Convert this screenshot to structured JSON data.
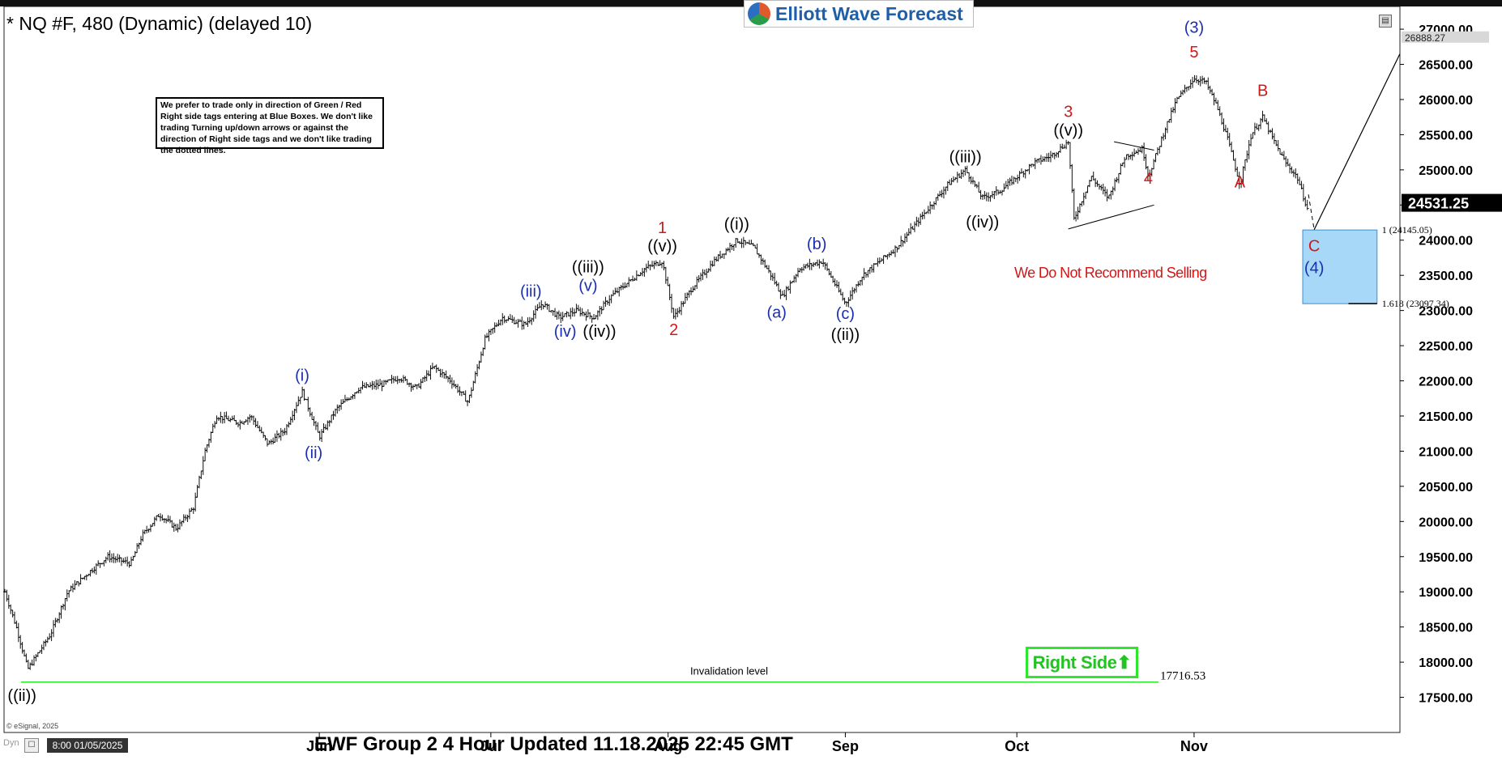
{
  "title": "* NQ #F, 480 (Dynamic) (delayed 10)",
  "logo_text": "Elliott Wave Forecast",
  "note": "We prefer to trade only in direction of Green / Red Right side tags entering at Blue Boxes. We don't like trading Turning up/down arrows or against the direction of Right side tags and we don't like trading the dotted lines.",
  "selling_note": "We Do Not Recommend Selling",
  "right_side_label": "Right Side",
  "bottom_title": "EWF Group 2 4 Hour Updated 11.18.2025 22:45 GMT",
  "esignal": "© eSignal, 2025",
  "dyn_label": "Dyn",
  "start_date": "8:00 01/05/2025",
  "colors": {
    "wave_red": "#d01818",
    "wave_blue": "#1a2fb0",
    "wave_black": "#000000",
    "box_fill": "#a8d8f8",
    "box_border": "#3b8fd6",
    "invalidation_line": "#2ee62e",
    "right_side_green": "#21c421"
  },
  "chart_data": {
    "type": "ohlc",
    "ylim": [
      17000,
      27300
    ],
    "y_ticks": [
      17500,
      18000,
      18500,
      19000,
      19500,
      20000,
      20500,
      21000,
      21500,
      22000,
      22500,
      23000,
      23500,
      24000,
      24500,
      25000,
      25500,
      26000,
      26500,
      27000
    ],
    "y_tick_labels": [
      "17500.00",
      "18000.00",
      "18500.00",
      "19000.00",
      "19500.00",
      "20000.00",
      "20500.00",
      "21000.00",
      "21500.00",
      "22000.00",
      "22500.00",
      "23000.00",
      "23500.00",
      "24000.00",
      "24500.00",
      "25000.00",
      "25500.00",
      "26000.00",
      "26500.00",
      "27000.00"
    ],
    "x_range": [
      "2025-04-07",
      "2025-12-07"
    ],
    "x_ticks": [
      {
        "date": "2025-06-01",
        "label": "Jun"
      },
      {
        "date": "2025-07-01",
        "label": "Jul"
      },
      {
        "date": "2025-08-01",
        "label": "Aug"
      },
      {
        "date": "2025-09-01",
        "label": "Sep"
      },
      {
        "date": "2025-10-01",
        "label": "Oct"
      },
      {
        "date": "2025-11-01",
        "label": "Nov"
      }
    ],
    "current_price": 24531.25,
    "current_price_label": "24531.25",
    "high_marker": 26888.27,
    "high_marker_label": "26888.27",
    "path": [
      [
        "2025-04-07",
        19000
      ],
      [
        "2025-04-09",
        18500
      ],
      [
        "2025-04-11",
        17900
      ],
      [
        "2025-04-15",
        18400
      ],
      [
        "2025-04-18",
        19000
      ],
      [
        "2025-04-22",
        19300
      ],
      [
        "2025-04-25",
        19500
      ],
      [
        "2025-04-29",
        19400
      ],
      [
        "2025-05-01",
        19800
      ],
      [
        "2025-05-04",
        20100
      ],
      [
        "2025-05-07",
        19900
      ],
      [
        "2025-05-10",
        20200
      ],
      [
        "2025-05-12",
        21000
      ],
      [
        "2025-05-14",
        21500
      ],
      [
        "2025-05-18",
        21400
      ],
      [
        "2025-05-20",
        21500
      ],
      [
        "2025-05-23",
        21100
      ],
      [
        "2025-05-26",
        21300
      ],
      [
        "2025-05-29",
        21850
      ],
      [
        "2025-06-01",
        21200
      ],
      [
        "2025-06-04",
        21600
      ],
      [
        "2025-06-08",
        21900
      ],
      [
        "2025-06-12",
        21950
      ],
      [
        "2025-06-15",
        22050
      ],
      [
        "2025-06-18",
        21900
      ],
      [
        "2025-06-21",
        22200
      ],
      [
        "2025-06-24",
        22000
      ],
      [
        "2025-06-27",
        21700
      ],
      [
        "2025-06-30",
        22600
      ],
      [
        "2025-07-03",
        22900
      ],
      [
        "2025-07-07",
        22800
      ],
      [
        "2025-07-10",
        23100
      ],
      [
        "2025-07-13",
        22900
      ],
      [
        "2025-07-16",
        23000
      ],
      [
        "2025-07-19",
        22900
      ],
      [
        "2025-07-22",
        23200
      ],
      [
        "2025-07-25",
        23400
      ],
      [
        "2025-07-28",
        23600
      ],
      [
        "2025-07-31",
        23700
      ],
      [
        "2025-08-02",
        22900
      ],
      [
        "2025-08-05",
        23300
      ],
      [
        "2025-08-09",
        23700
      ],
      [
        "2025-08-13",
        24000
      ],
      [
        "2025-08-16",
        23900
      ],
      [
        "2025-08-19",
        23500
      ],
      [
        "2025-08-21",
        23200
      ],
      [
        "2025-08-24",
        23600
      ],
      [
        "2025-08-28",
        23700
      ],
      [
        "2025-09-01",
        23100
      ],
      [
        "2025-09-04",
        23500
      ],
      [
        "2025-09-07",
        23700
      ],
      [
        "2025-09-10",
        23900
      ],
      [
        "2025-09-13",
        24200
      ],
      [
        "2025-09-16",
        24500
      ],
      [
        "2025-09-19",
        24800
      ],
      [
        "2025-09-22",
        25000
      ],
      [
        "2025-09-25",
        24600
      ],
      [
        "2025-09-28",
        24700
      ],
      [
        "2025-10-01",
        24900
      ],
      [
        "2025-10-04",
        25100
      ],
      [
        "2025-10-07",
        25200
      ],
      [
        "2025-10-10",
        25400
      ],
      [
        "2025-10-11",
        24300
      ],
      [
        "2025-10-14",
        24900
      ],
      [
        "2025-10-17",
        24600
      ],
      [
        "2025-10-20",
        25200
      ],
      [
        "2025-10-23",
        25300
      ],
      [
        "2025-10-24",
        24900
      ],
      [
        "2025-10-27",
        25600
      ],
      [
        "2025-10-29",
        26000
      ],
      [
        "2025-11-01",
        26300
      ],
      [
        "2025-11-03",
        26250
      ],
      [
        "2025-11-05",
        25900
      ],
      [
        "2025-11-07",
        25400
      ],
      [
        "2025-11-09",
        24800
      ],
      [
        "2025-11-11",
        25500
      ],
      [
        "2025-11-13",
        25750
      ],
      [
        "2025-11-15",
        25400
      ],
      [
        "2025-11-17",
        25100
      ],
      [
        "2025-11-19",
        24900
      ],
      [
        "2025-11-21",
        24400
      ]
    ],
    "wave_labels": [
      {
        "text": "((ii))",
        "date": "2025-04-10",
        "price": 17450,
        "color": "black"
      },
      {
        "text": "(i)",
        "date": "2025-05-29",
        "price": 22000,
        "color": "blue"
      },
      {
        "text": "(ii)",
        "date": "2025-05-31",
        "price": 20900,
        "color": "blue"
      },
      {
        "text": "(iii)",
        "date": "2025-07-08",
        "price": 23200,
        "color": "blue"
      },
      {
        "text": "((iii))",
        "date": "2025-07-18",
        "price": 23540,
        "color": "black"
      },
      {
        "text": "(v)",
        "date": "2025-07-18",
        "price": 23280,
        "color": "blue"
      },
      {
        "text": "(iv)",
        "date": "2025-07-14",
        "price": 22630,
        "color": "blue"
      },
      {
        "text": "((iv))",
        "date": "2025-07-20",
        "price": 22630,
        "color": "black"
      },
      {
        "text": "1",
        "date": "2025-07-31",
        "price": 24100,
        "color": "red"
      },
      {
        "text": "((v))",
        "date": "2025-07-31",
        "price": 23840,
        "color": "black"
      },
      {
        "text": "2",
        "date": "2025-08-02",
        "price": 22650,
        "color": "red"
      },
      {
        "text": "((i))",
        "date": "2025-08-13",
        "price": 24150,
        "color": "black"
      },
      {
        "text": "(a)",
        "date": "2025-08-20",
        "price": 22900,
        "color": "blue"
      },
      {
        "text": "(b)",
        "date": "2025-08-27",
        "price": 23870,
        "color": "blue"
      },
      {
        "text": "(c)",
        "date": "2025-09-01",
        "price": 22880,
        "color": "blue"
      },
      {
        "text": "((ii))",
        "date": "2025-09-01",
        "price": 22580,
        "color": "black"
      },
      {
        "text": "((iii))",
        "date": "2025-09-22",
        "price": 25110,
        "color": "black"
      },
      {
        "text": "((iv))",
        "date": "2025-09-25",
        "price": 24180,
        "color": "black"
      },
      {
        "text": "3",
        "date": "2025-10-10",
        "price": 25750,
        "color": "red"
      },
      {
        "text": "((v))",
        "date": "2025-10-10",
        "price": 25490,
        "color": "black"
      },
      {
        "text": "4",
        "date": "2025-10-24",
        "price": 24800,
        "color": "red"
      },
      {
        "text": "(3)",
        "date": "2025-11-01",
        "price": 26950,
        "color": "blue"
      },
      {
        "text": "5",
        "date": "2025-11-01",
        "price": 26600,
        "color": "red"
      },
      {
        "text": "A",
        "date": "2025-11-09",
        "price": 24750,
        "color": "red"
      },
      {
        "text": "B",
        "date": "2025-11-13",
        "price": 26050,
        "color": "red"
      },
      {
        "text": "C",
        "date": "2025-11-22",
        "price": 23840,
        "color": "red"
      },
      {
        "text": "(4)",
        "date": "2025-11-22",
        "price": 23530,
        "color": "blue"
      }
    ],
    "blue_box": {
      "start": "2025-11-20",
      "end": "2025-12-03",
      "top": 24145.05,
      "bottom": 23097.34
    },
    "fib_levels": [
      {
        "label": "1 (24145.05)",
        "price": 24145.05
      },
      {
        "label": "1.618 (23097.34)",
        "price": 23097.34
      }
    ],
    "invalidation": {
      "price": 17716.53,
      "price_label": "17716.53",
      "label": "Invalidation level"
    }
  }
}
